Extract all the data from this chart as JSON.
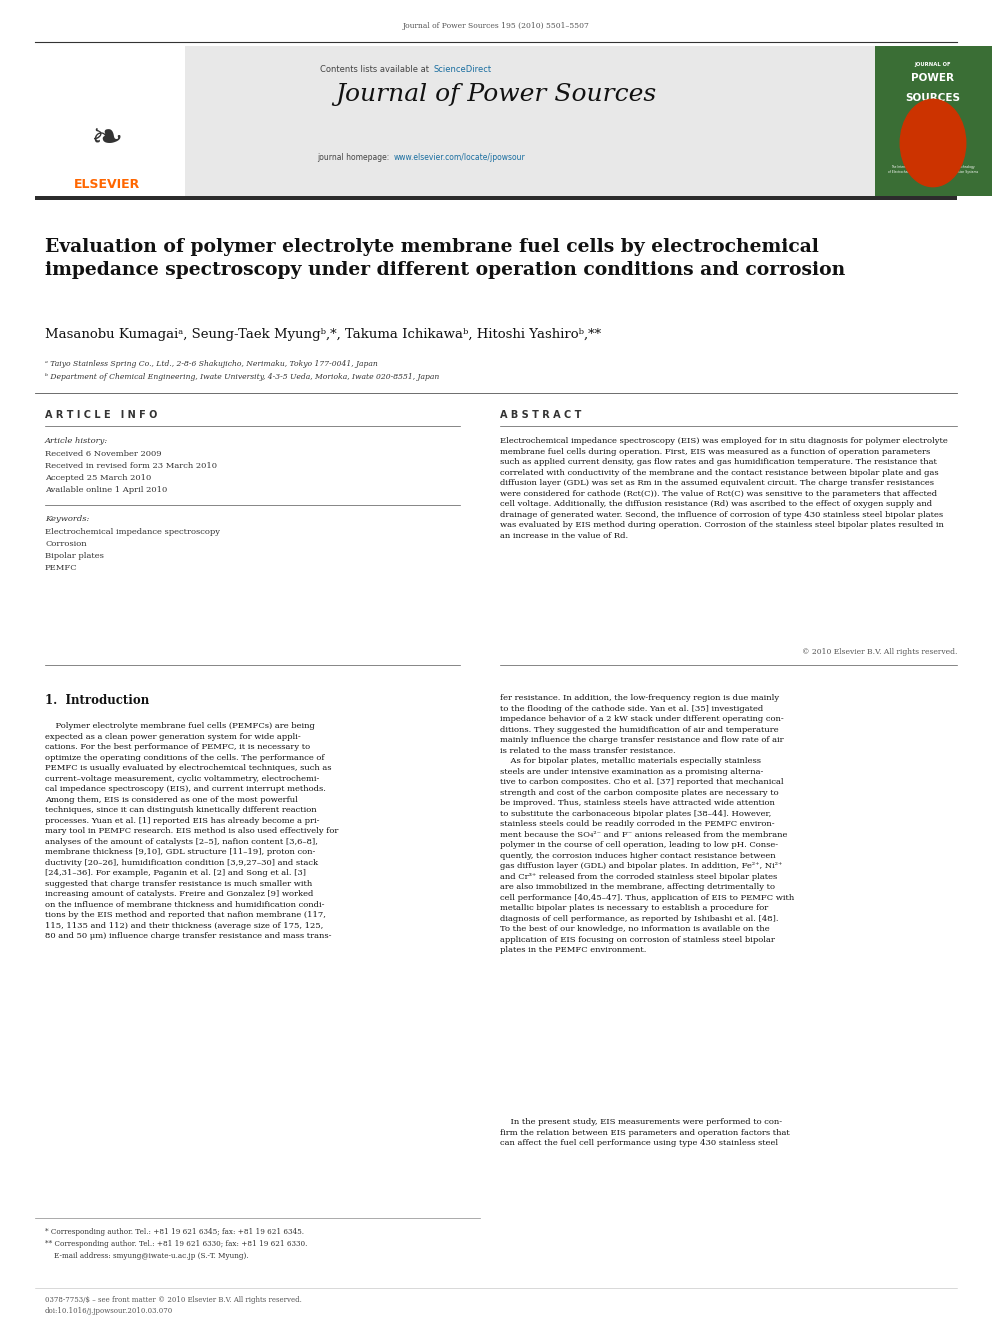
{
  "page_width": 9.92,
  "page_height": 13.23,
  "bg_color": "#ffffff",
  "header_journal_text": "Journal of Power Sources 195 (2010) 5501–5507",
  "banner_bg": "#e8e8e8",
  "banner_contents_text": "Contents lists available at ",
  "banner_sciencedirect_text": "ScienceDirect",
  "banner_sciencedirect_color": "#1a6ea0",
  "banner_journal_name": "Journal of Power Sources",
  "banner_homepage_text": "journal homepage: ",
  "banner_homepage_url": "www.elsevier.com/locate/jpowsour",
  "banner_url_color": "#1a6ea0",
  "dark_bar_color": "#2c2c2c",
  "elsevier_logo_color": "#ff6600",
  "elsevier_text": "ELSEVIER",
  "article_title": "Evaluation of polymer electrolyte membrane fuel cells by electrochemical\nimpedance spectroscopy under different operation conditions and corrosion",
  "authors": "Masanobu Kumagaiᵃ, Seung-Taek Myungᵇ,*, Takuma Ichikawaᵇ, Hitoshi Yashiroᵇ,**",
  "affil_a": "ᵃ Taiyo Stainless Spring Co., Ltd., 2-8-6 Shakujicho, Nerimaku, Tokyo 177-0041, Japan",
  "affil_b": "ᵇ Department of Chemical Engineering, Iwate University, 4-3-5 Ueda, Morioka, Iwate 020-8551, Japan",
  "article_info_title": "A R T I C L E   I N F O",
  "abstract_title": "A B S T R A C T",
  "article_history_label": "Article history:",
  "received_1": "Received 6 November 2009",
  "received_revised": "Received in revised form 23 March 2010",
  "accepted": "Accepted 25 March 2010",
  "available_online": "Available online 1 April 2010",
  "keywords_label": "Keywords:",
  "keyword_1": "Electrochemical impedance spectroscopy",
  "keyword_2": "Corrosion",
  "keyword_3": "Bipolar plates",
  "keyword_4": "PEMFC",
  "abstract_text": "Electrochemical impedance spectroscopy (EIS) was employed for in situ diagnosis for polymer electrolyte\nmembrane fuel cells during operation. First, EIS was measured as a function of operation parameters\nsuch as applied current density, gas flow rates and gas humidification temperature. The resistance that\ncorrelated with conductivity of the membrane and the contact resistance between bipolar plate and gas\ndiffusion layer (GDL) was set as Rm in the assumed equivalent circuit. The charge transfer resistances\nwere considered for cathode (Rct(C)). The value of Rct(C) was sensitive to the parameters that affected\ncell voltage. Additionally, the diffusion resistance (Rd) was ascribed to the effect of oxygen supply and\ndrainage of generated water. Second, the influence of corrosion of type 430 stainless steel bipolar plates\nwas evaluated by EIS method during operation. Corrosion of the stainless steel bipolar plates resulted in\nan increase in the value of Rd.",
  "copyright_text": "© 2010 Elsevier B.V. All rights reserved.",
  "section_1_title": "1.  Introduction",
  "section_1_col1_text": "    Polymer electrolyte membrane fuel cells (PEMFCs) are being\nexpected as a clean power generation system for wide appli-\ncations. For the best performance of PEMFC, it is necessary to\noptimize the operating conditions of the cells. The performance of\nPEMFC is usually evaluated by electrochemical techniques, such as\ncurrent–voltage measurement, cyclic voltammetry, electrochemi-\ncal impedance spectroscopy (EIS), and current interrupt methods.\nAmong them, EIS is considered as one of the most powerful\ntechniques, since it can distinguish kinetically different reaction\nprocesses. Yuan et al. [1] reported EIS has already become a pri-\nmary tool in PEMFC research. EIS method is also used effectively for\nanalyses of the amount of catalysts [2–5], nafion content [3,6–8],\nmembrane thickness [9,10], GDL structure [11–19], proton con-\nductivity [20–26], humidification condition [3,9,27–30] and stack\n[24,31–36]. For example, Paganin et al. [2] and Song et al. [3]\nsuggested that charge transfer resistance is much smaller with\nincreasing amount of catalysts. Freire and Gonzalez [9] worked\non the influence of membrane thickness and humidification condi-\ntions by the EIS method and reported that nafion membrane (117,\n115, 1135 and 112) and their thickness (average size of 175, 125,\n80 and 50 μm) influence charge transfer resistance and mass trans-",
  "section_1_col2_text": "fer resistance. In addition, the low-frequency region is due mainly\nto the flooding of the cathode side. Yan et al. [35] investigated\nimpedance behavior of a 2 kW stack under different operating con-\nditions. They suggested the humidification of air and temperature\nmainly influence the charge transfer resistance and flow rate of air\nis related to the mass transfer resistance.\n    As for bipolar plates, metallic materials especially stainless\nsteels are under intensive examination as a promising alterna-\ntive to carbon composites. Cho et al. [37] reported that mechanical\nstrength and cost of the carbon composite plates are necessary to\nbe improved. Thus, stainless steels have attracted wide attention\nto substitute the carbonaceous bipolar plates [38–44]. However,\nstainless steels could be readily corroded in the PEMFC environ-\nment because the SO₄²⁻ and F⁻ anions released from the membrane\npolymer in the course of cell operation, leading to low pH. Conse-\nquently, the corrosion induces higher contact resistance between\ngas diffusion layer (GDL) and bipolar plates. In addition, Fe²⁺, Ni²⁺\nand Cr³⁺ released from the corroded stainless steel bipolar plates\nare also immobilized in the membrane, affecting detrimentally to\ncell performance [40,45–47]. Thus, application of EIS to PEMFC with\nmetallic bipolar plates is necessary to establish a procedure for\ndiagnosis of cell performance, as reported by Ishibashi et al. [48].\nTo the best of our knowledge, no information is available on the\napplication of EIS focusing on corrosion of stainless steel bipolar\nplates in the PEMFC environment.",
  "section_1_col2_last": "    In the present study, EIS measurements were performed to con-\nfirm the relation between EIS parameters and operation factors that\ncan affect the fuel cell performance using type 430 stainless steel",
  "footnote_star": "* Corresponding author. Tel.: +81 19 621 6345; fax: +81 19 621 6345.",
  "footnote_dstar": "** Corresponding author. Tel.: +81 19 621 6330; fax: +81 19 621 6330.",
  "footnote_email": "    E-mail address: smyung@iwate-u.ac.jp (S.-T. Myung).",
  "footer_text": "0378-7753/$ – see front matter © 2010 Elsevier B.V. All rights reserved.\ndoi:10.1016/j.jpowsour.2010.03.070"
}
